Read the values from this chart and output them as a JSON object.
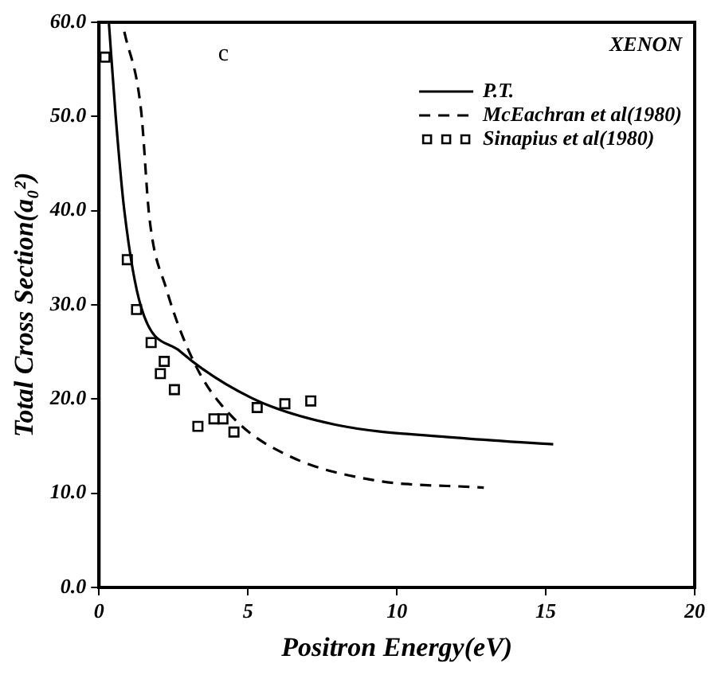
{
  "chart_data": {
    "type": "line",
    "xlabel": "Positron Energy(eV)",
    "ylabel": "Total Cross Section(a₀²)",
    "annotations": [
      "c",
      "XENON"
    ],
    "xlim": [
      0,
      20
    ],
    "xticks": [
      0,
      5,
      10,
      15,
      20
    ],
    "ylim": [
      0,
      60
    ],
    "yticks": [
      {
        "value": 0,
        "label": "0.0"
      },
      {
        "value": 10,
        "label": "10.0"
      },
      {
        "value": 20,
        "label": "20.0"
      },
      {
        "value": 30,
        "label": "30.0"
      },
      {
        "value": 40,
        "label": "40.0"
      },
      {
        "value": 50,
        "label": "50.0"
      },
      {
        "value": 60,
        "label": "60.0"
      }
    ],
    "grid": false,
    "legend": "top right",
    "series": [
      {
        "name": "P.T.",
        "color": "#000000",
        "line_style": "solid",
        "marker": "none",
        "x": [
          0.33,
          0.56,
          0.85,
          1.41,
          2.71,
          5.13,
          7.9,
          12,
          15.25
        ],
        "values": [
          60,
          50,
          40,
          29.8,
          25.1,
          20.1,
          17.3,
          15.9,
          15.2
        ]
      },
      {
        "name": "McEachran et al(1980)",
        "color": "#000000",
        "line_style": "dashed",
        "marker": "none",
        "x": [
          0.85,
          1.41,
          1.69,
          2.25,
          3.27,
          4.57,
          6.42,
          9.21,
          12.92
        ],
        "values": [
          59,
          50.7,
          39.3,
          31.8,
          23.4,
          17.8,
          13.9,
          11.4,
          10.6
        ]
      },
      {
        "name": "Sinapius et al(1980)",
        "type": "scatter",
        "color": "#000000",
        "marker": "square",
        "x": [
          0.2,
          0.95,
          1.26,
          1.75,
          2.06,
          2.19,
          2.53,
          3.32,
          3.86,
          4.16,
          4.53,
          5.31,
          6.24,
          7.11
        ],
        "values": [
          56.3,
          34.8,
          29.5,
          26,
          22.7,
          24,
          21,
          17.1,
          17.9,
          17.9,
          16.5,
          19.1,
          19.5,
          19.8
        ]
      }
    ]
  }
}
